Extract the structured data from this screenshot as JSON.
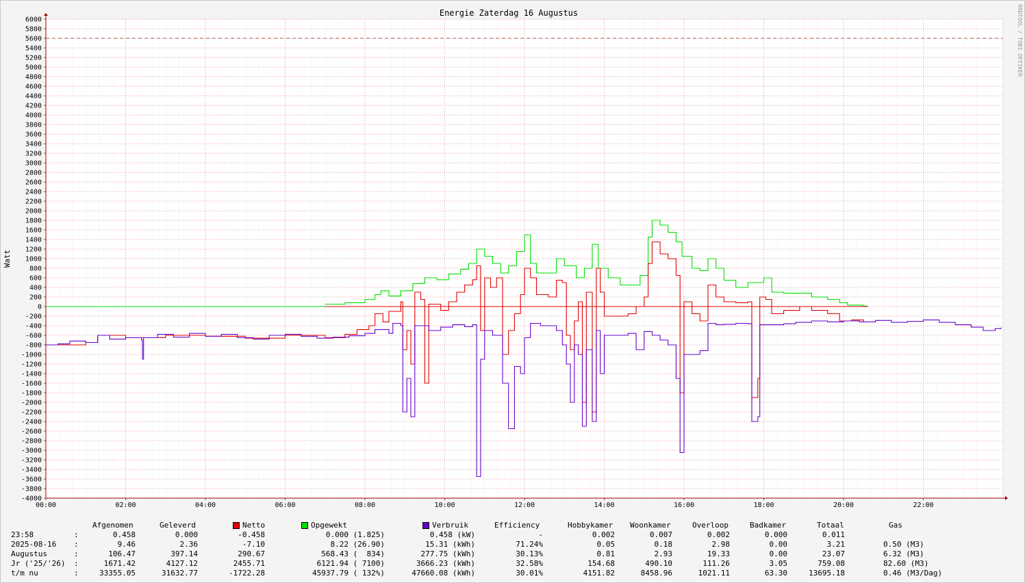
{
  "title": "Energie Zaterdag  16 Augustus",
  "credit": "RRDTOOL / TOBI OETIKER",
  "colors": {
    "netto": "#e00000",
    "opgewekt": "#00dd00",
    "verbruik": "#6600cc",
    "limit": "#b05050"
  },
  "chart_data": {
    "type": "line",
    "title": "Energie Zaterdag  16 Augustus",
    "ylabel": "Watt",
    "xlabel": "",
    "ylim": [
      -4000,
      6000
    ],
    "xlim_hours": [
      0,
      24
    ],
    "y_ticks": [
      "6000",
      "5800",
      "5600",
      "5400",
      "5200",
      "5000",
      "4800",
      "4600",
      "4400",
      "4200",
      "4000",
      "3800",
      "3600",
      "3400",
      "3200",
      "3000",
      "2800",
      "2600",
      "2400",
      "2200",
      "2000",
      "1800",
      "1600",
      "1400",
      "1200",
      "1000",
      "800",
      "600",
      "400",
      "200",
      "0",
      "-200",
      "-400",
      "-600",
      "-800",
      "-1000",
      "-1200",
      "-1400",
      "-1600",
      "-1800",
      "-2000",
      "-2200",
      "-2400",
      "-2600",
      "-2800",
      "-3000",
      "-3200",
      "-3400",
      "-3600",
      "-3800",
      "-4000"
    ],
    "x_ticks": [
      "00:00",
      "02:00",
      "04:00",
      "06:00",
      "08:00",
      "10:00",
      "12:00",
      "14:00",
      "16:00",
      "18:00",
      "20:00",
      "22:00"
    ],
    "reference_line": 5600,
    "grid": true,
    "series": [
      {
        "name": "Opgewekt",
        "color": "#00dd00",
        "points": [
          [
            7.0,
            50
          ],
          [
            7.5,
            80
          ],
          [
            8.0,
            150
          ],
          [
            8.25,
            250
          ],
          [
            8.4,
            330
          ],
          [
            8.6,
            220
          ],
          [
            8.9,
            330
          ],
          [
            9.2,
            480
          ],
          [
            9.5,
            600
          ],
          [
            9.8,
            560
          ],
          [
            10.1,
            680
          ],
          [
            10.4,
            780
          ],
          [
            10.6,
            900
          ],
          [
            10.8,
            1200
          ],
          [
            11.0,
            1050
          ],
          [
            11.2,
            900
          ],
          [
            11.4,
            700
          ],
          [
            11.6,
            850
          ],
          [
            11.8,
            1150
          ],
          [
            12.0,
            1500
          ],
          [
            12.15,
            900
          ],
          [
            12.3,
            700
          ],
          [
            12.6,
            700
          ],
          [
            12.8,
            1000
          ],
          [
            13.0,
            850
          ],
          [
            13.3,
            600
          ],
          [
            13.5,
            800
          ],
          [
            13.7,
            1300
          ],
          [
            13.85,
            800
          ],
          [
            14.1,
            600
          ],
          [
            14.4,
            450
          ],
          [
            14.7,
            450
          ],
          [
            14.9,
            650
          ],
          [
            15.1,
            1450
          ],
          [
            15.2,
            1800
          ],
          [
            15.4,
            1700
          ],
          [
            15.6,
            1550
          ],
          [
            15.8,
            1350
          ],
          [
            15.95,
            1050
          ],
          [
            16.2,
            800
          ],
          [
            16.4,
            750
          ],
          [
            16.6,
            1000
          ],
          [
            16.8,
            800
          ],
          [
            17.0,
            550
          ],
          [
            17.3,
            400
          ],
          [
            17.6,
            500
          ],
          [
            17.8,
            500
          ],
          [
            18.0,
            600
          ],
          [
            18.2,
            300
          ],
          [
            18.5,
            280
          ],
          [
            18.9,
            280
          ],
          [
            19.2,
            200
          ],
          [
            19.6,
            150
          ],
          [
            19.9,
            80
          ],
          [
            20.1,
            30
          ],
          [
            20.5,
            10
          ],
          [
            20.6,
            0
          ]
        ]
      },
      {
        "name": "Netto",
        "color": "#e00000",
        "points": [
          [
            0.0,
            -800
          ],
          [
            1.0,
            -750
          ],
          [
            1.3,
            -600
          ],
          [
            2.0,
            -650
          ],
          [
            3.0,
            -600
          ],
          [
            4.0,
            -620
          ],
          [
            5.0,
            -660
          ],
          [
            6.0,
            -600
          ],
          [
            7.0,
            -650
          ],
          [
            7.5,
            -580
          ],
          [
            7.8,
            -480
          ],
          [
            8.1,
            -400
          ],
          [
            8.25,
            -150
          ],
          [
            8.45,
            -320
          ],
          [
            8.6,
            -100
          ],
          [
            8.9,
            100
          ],
          [
            8.95,
            -900
          ],
          [
            9.05,
            -500
          ],
          [
            9.15,
            -1200
          ],
          [
            9.25,
            300
          ],
          [
            9.4,
            150
          ],
          [
            9.5,
            -1600
          ],
          [
            9.6,
            50
          ],
          [
            9.9,
            -80
          ],
          [
            10.1,
            100
          ],
          [
            10.3,
            300
          ],
          [
            10.5,
            450
          ],
          [
            10.7,
            560
          ],
          [
            10.8,
            850
          ],
          [
            10.9,
            -500
          ],
          [
            11.0,
            600
          ],
          [
            11.15,
            400
          ],
          [
            11.3,
            600
          ],
          [
            11.45,
            -1000
          ],
          [
            11.6,
            -500
          ],
          [
            11.75,
            -150
          ],
          [
            11.9,
            250
          ],
          [
            12.0,
            800
          ],
          [
            12.15,
            600
          ],
          [
            12.3,
            250
          ],
          [
            12.6,
            200
          ],
          [
            12.8,
            550
          ],
          [
            12.95,
            500
          ],
          [
            13.05,
            -600
          ],
          [
            13.15,
            -900
          ],
          [
            13.25,
            -300
          ],
          [
            13.35,
            100
          ],
          [
            13.45,
            -2000
          ],
          [
            13.55,
            300
          ],
          [
            13.7,
            -2200
          ],
          [
            13.8,
            800
          ],
          [
            13.9,
            300
          ],
          [
            14.0,
            -200
          ],
          [
            14.3,
            -200
          ],
          [
            14.6,
            -150
          ],
          [
            14.8,
            0
          ],
          [
            15.0,
            200
          ],
          [
            15.1,
            900
          ],
          [
            15.2,
            1350
          ],
          [
            15.4,
            1100
          ],
          [
            15.6,
            1000
          ],
          [
            15.8,
            650
          ],
          [
            15.9,
            -1800
          ],
          [
            16.0,
            100
          ],
          [
            16.2,
            -150
          ],
          [
            16.4,
            -300
          ],
          [
            16.6,
            450
          ],
          [
            16.8,
            200
          ],
          [
            17.0,
            100
          ],
          [
            17.3,
            80
          ],
          [
            17.6,
            100
          ],
          [
            17.7,
            -1900
          ],
          [
            17.85,
            -1500
          ],
          [
            17.9,
            200
          ],
          [
            18.05,
            150
          ],
          [
            18.2,
            -150
          ],
          [
            18.5,
            -80
          ],
          [
            18.9,
            0
          ],
          [
            19.2,
            -80
          ],
          [
            19.6,
            -150
          ],
          [
            19.9,
            -300
          ],
          [
            20.2,
            -280
          ],
          [
            20.5,
            -320
          ]
        ]
      },
      {
        "name": "Verbruik",
        "color": "#6600cc",
        "points": [
          [
            0.0,
            -800
          ],
          [
            0.3,
            -780
          ],
          [
            0.6,
            -720
          ],
          [
            1.0,
            -750
          ],
          [
            1.3,
            -600
          ],
          [
            1.6,
            -680
          ],
          [
            2.0,
            -650
          ],
          [
            2.4,
            -700
          ],
          [
            2.42,
            -1100
          ],
          [
            2.45,
            -650
          ],
          [
            2.8,
            -580
          ],
          [
            3.2,
            -640
          ],
          [
            3.6,
            -560
          ],
          [
            4.0,
            -620
          ],
          [
            4.4,
            -580
          ],
          [
            4.8,
            -650
          ],
          [
            5.2,
            -680
          ],
          [
            5.6,
            -600
          ],
          [
            6.0,
            -580
          ],
          [
            6.4,
            -620
          ],
          [
            6.8,
            -660
          ],
          [
            7.2,
            -640
          ],
          [
            7.6,
            -610
          ],
          [
            8.0,
            -560
          ],
          [
            8.25,
            -480
          ],
          [
            8.6,
            -560
          ],
          [
            8.7,
            -350
          ],
          [
            8.9,
            -400
          ],
          [
            8.95,
            -2200
          ],
          [
            9.05,
            -1500
          ],
          [
            9.15,
            -2300
          ],
          [
            9.25,
            -400
          ],
          [
            9.5,
            -400
          ],
          [
            9.6,
            -500
          ],
          [
            9.9,
            -430
          ],
          [
            10.2,
            -380
          ],
          [
            10.5,
            -420
          ],
          [
            10.7,
            -380
          ],
          [
            10.8,
            -3550
          ],
          [
            10.9,
            -1100
          ],
          [
            11.0,
            -500
          ],
          [
            11.2,
            -600
          ],
          [
            11.45,
            -1600
          ],
          [
            11.6,
            -2550
          ],
          [
            11.75,
            -1250
          ],
          [
            11.9,
            -1400
          ],
          [
            12.0,
            -650
          ],
          [
            12.15,
            -350
          ],
          [
            12.4,
            -400
          ],
          [
            12.8,
            -500
          ],
          [
            12.95,
            -800
          ],
          [
            13.05,
            -1200
          ],
          [
            13.15,
            -2000
          ],
          [
            13.25,
            -800
          ],
          [
            13.35,
            -1000
          ],
          [
            13.45,
            -2500
          ],
          [
            13.55,
            -900
          ],
          [
            13.7,
            -2400
          ],
          [
            13.8,
            -500
          ],
          [
            13.9,
            -1400
          ],
          [
            14.0,
            -600
          ],
          [
            14.4,
            -600
          ],
          [
            14.6,
            -560
          ],
          [
            14.8,
            -900
          ],
          [
            15.0,
            -520
          ],
          [
            15.2,
            -600
          ],
          [
            15.4,
            -700
          ],
          [
            15.6,
            -800
          ],
          [
            15.8,
            -1500
          ],
          [
            15.9,
            -3050
          ],
          [
            16.0,
            -1000
          ],
          [
            16.4,
            -920
          ],
          [
            16.6,
            -350
          ],
          [
            16.8,
            -380
          ],
          [
            17.0,
            -370
          ],
          [
            17.3,
            -350
          ],
          [
            17.6,
            -360
          ],
          [
            17.7,
            -2400
          ],
          [
            17.85,
            -2300
          ],
          [
            17.9,
            -380
          ],
          [
            18.2,
            -380
          ],
          [
            18.5,
            -360
          ],
          [
            18.8,
            -330
          ],
          [
            19.2,
            -300
          ],
          [
            19.6,
            -320
          ],
          [
            20.0,
            -300
          ],
          [
            20.4,
            -320
          ],
          [
            20.8,
            -290
          ],
          [
            21.2,
            -330
          ],
          [
            21.6,
            -310
          ],
          [
            22.0,
            -280
          ],
          [
            22.4,
            -330
          ],
          [
            22.8,
            -380
          ],
          [
            23.2,
            -430
          ],
          [
            23.5,
            -500
          ],
          [
            23.8,
            -460
          ],
          [
            23.95,
            -440
          ]
        ]
      },
      {
        "name": "Opgewekt-base",
        "color": "#00dd00",
        "points": [
          [
            0.0,
            0
          ],
          [
            20.6,
            0
          ]
        ]
      }
    ]
  },
  "legend": {
    "headers": {
      "afgenomen": "Afgenomen",
      "geleverd": "Geleverd",
      "netto": "Netto",
      "opgewekt": "Opgewekt",
      "verbruik": "Verbruik",
      "efficiency": "Efficiency",
      "hobbykamer": "Hobbykamer",
      "woonkamer": "Woonkamer",
      "overloop": "Overloop",
      "badkamer": "Badkamer",
      "totaal": "Totaal",
      "gas": "Gas"
    },
    "rows": [
      {
        "label": "23:58",
        "sep": ":",
        "afgenomen": "0.458",
        "geleverd": "0.000",
        "netto": "-0.458",
        "opgewekt": "0.000 (1.825)",
        "verbruik": "0.458 (kW)",
        "efficiency": "-",
        "hobbykamer": "0.002",
        "woonkamer": "0.007",
        "overloop": "0.002",
        "badkamer": "0.000",
        "totaal": "0.011",
        "gas": ""
      },
      {
        "label": "2025-08-16",
        "sep": ":",
        "afgenomen": "9.46",
        "geleverd": "2.36",
        "netto": "-7.10",
        "opgewekt": "8.22 (26.90)",
        "verbruik": "15.31 (kWh)",
        "efficiency": "71.24%",
        "hobbykamer": "0.05",
        "woonkamer": "0.18",
        "overloop": "2.98",
        "badkamer": "0.00",
        "totaal": "3.21",
        "gas": "0.50 (M3)"
      },
      {
        "label": "Augustus",
        "sep": ":",
        "afgenomen": "106.47",
        "geleverd": "397.14",
        "netto": "290.67",
        "opgewekt": "568.43 (  834)",
        "verbruik": "277.75 (kWh)",
        "efficiency": "30.13%",
        "hobbykamer": "0.81",
        "woonkamer": "2.93",
        "overloop": "19.33",
        "badkamer": "0.00",
        "totaal": "23.07",
        "gas": "6.32 (M3)"
      },
      {
        "label": "Jr ('25/'26)",
        "sep": ":",
        "afgenomen": "1671.42",
        "geleverd": "4127.12",
        "netto": "2455.71",
        "opgewekt": "6121.94 ( 7100)",
        "verbruik": "3666.23 (kWh)",
        "efficiency": "32.58%",
        "hobbykamer": "154.68",
        "woonkamer": "490.10",
        "overloop": "111.26",
        "badkamer": "3.05",
        "totaal": "759.08",
        "gas": "82.60 (M3)"
      },
      {
        "label": "t/m nu",
        "sep": ":",
        "afgenomen": "33355.05",
        "geleverd": "31632.77",
        "netto": "-1722.28",
        "opgewekt": "45937.79 ( 132%)",
        "verbruik": "47660.08 (kWh)",
        "efficiency": "30.01%",
        "hobbykamer": "4151.82",
        "woonkamer": "8458.96",
        "overloop": "1021.11",
        "badkamer": "63.30",
        "totaal": "13695.18",
        "gas": "0.46 (M3/Dag)"
      }
    ]
  }
}
